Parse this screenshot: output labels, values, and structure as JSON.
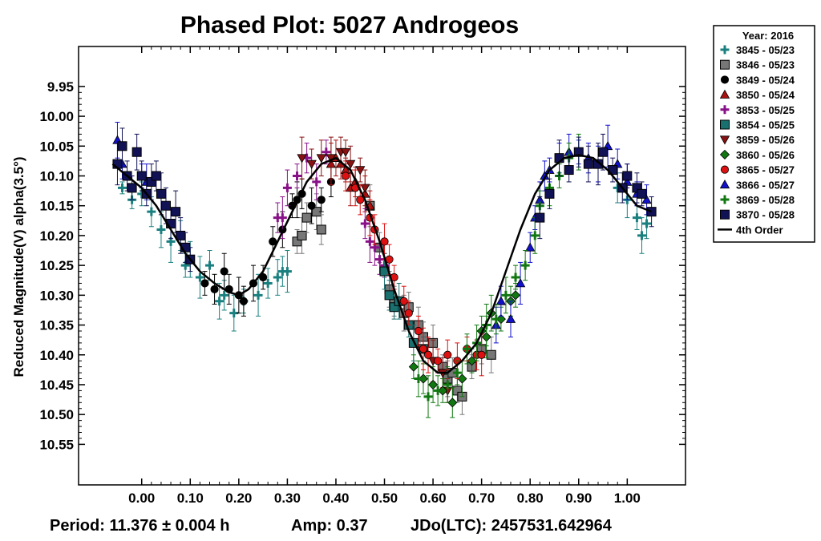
{
  "chart_data": {
    "type": "scatter",
    "title": "Phased Plot: 5027 Androgeos",
    "xlabel": "",
    "ylabel": "Reduced Magnitude(V) alpha(3.5°)",
    "xlim": [
      -0.13,
      1.12
    ],
    "ylim": [
      10.618,
      9.883
    ],
    "y_inverted": true,
    "x_ticks": [
      "0.00",
      "0.10",
      "0.20",
      "0.30",
      "0.40",
      "0.50",
      "0.60",
      "0.70",
      "0.80",
      "0.90",
      "1.00"
    ],
    "y_ticks": [
      "9.95",
      "10.00",
      "10.05",
      "10.10",
      "10.15",
      "10.20",
      "10.25",
      "10.30",
      "10.35",
      "10.40",
      "10.45",
      "10.50",
      "10.55"
    ],
    "grid": false,
    "legend_title": "Year: 2016",
    "legend_position": "right-outside-top",
    "series": [
      {
        "name": "3845 - 05/23",
        "marker": "plus",
        "color": "#1a7f7f",
        "points": [
          [
            -0.04,
            10.12
          ],
          [
            -0.02,
            10.14
          ],
          [
            0.0,
            10.13
          ],
          [
            0.02,
            10.16
          ],
          [
            0.04,
            10.19
          ],
          [
            0.06,
            10.21
          ],
          [
            0.08,
            10.2
          ],
          [
            0.09,
            10.25
          ],
          [
            0.1,
            10.24
          ],
          [
            0.12,
            10.27
          ],
          [
            0.14,
            10.25
          ],
          [
            0.16,
            10.31
          ],
          [
            0.17,
            10.3
          ],
          [
            0.19,
            10.33
          ],
          [
            0.21,
            10.31
          ],
          [
            0.24,
            10.3
          ],
          [
            0.26,
            10.28
          ],
          [
            0.28,
            10.27
          ],
          [
            0.29,
            10.26
          ],
          [
            0.3,
            10.26
          ],
          [
            0.98,
            10.12
          ],
          [
            1.0,
            10.14
          ],
          [
            1.02,
            10.17
          ],
          [
            1.03,
            10.2
          ],
          [
            1.04,
            10.18
          ]
        ]
      },
      {
        "name": "3846 - 05/23",
        "marker": "square",
        "color": "#777777",
        "points": [
          [
            0.32,
            10.21
          ],
          [
            0.33,
            10.2
          ],
          [
            0.34,
            10.17
          ],
          [
            0.36,
            10.16
          ],
          [
            0.37,
            10.19
          ],
          [
            0.47,
            10.15
          ],
          [
            0.49,
            10.22
          ],
          [
            0.51,
            10.29
          ],
          [
            0.52,
            10.31
          ],
          [
            0.54,
            10.33
          ],
          [
            0.55,
            10.32
          ],
          [
            0.57,
            10.35
          ],
          [
            0.58,
            10.37
          ],
          [
            0.6,
            10.38
          ],
          [
            0.62,
            10.42
          ],
          [
            0.63,
            10.44
          ],
          [
            0.64,
            10.43
          ],
          [
            0.65,
            10.46
          ],
          [
            0.66,
            10.47
          ],
          [
            0.68,
            10.42
          ],
          [
            0.7,
            10.39
          ],
          [
            0.72,
            10.4
          ]
        ]
      },
      {
        "name": "3849 - 05/24",
        "marker": "circle",
        "color": "#000000",
        "points": [
          [
            0.13,
            10.28
          ],
          [
            0.15,
            10.29
          ],
          [
            0.17,
            10.26
          ],
          [
            0.18,
            10.29
          ],
          [
            0.2,
            10.3
          ],
          [
            0.21,
            10.31
          ],
          [
            0.23,
            10.28
          ],
          [
            0.25,
            10.27
          ],
          [
            0.27,
            10.21
          ],
          [
            0.29,
            10.19
          ],
          [
            0.31,
            10.15
          ],
          [
            0.32,
            10.14
          ],
          [
            0.33,
            10.13
          ],
          [
            0.35,
            10.15
          ],
          [
            0.37,
            10.14
          ],
          [
            0.39,
            10.11
          ]
        ]
      },
      {
        "name": "3850 - 05/24",
        "marker": "triangle-up",
        "color": "#aa1111",
        "points": [
          [
            0.39,
            10.08
          ],
          [
            0.4,
            10.07
          ],
          [
            0.41,
            10.08
          ],
          [
            0.42,
            10.09
          ],
          [
            0.43,
            10.12
          ],
          [
            0.44,
            10.11
          ],
          [
            0.46,
            10.13
          ],
          [
            0.47,
            10.15
          ]
        ]
      },
      {
        "name": "3853 - 05/25",
        "marker": "plus",
        "color": "#881188",
        "points": [
          [
            0.28,
            10.17
          ],
          [
            0.29,
            10.17
          ],
          [
            0.3,
            10.12
          ],
          [
            0.32,
            10.1
          ],
          [
            0.34,
            10.07
          ],
          [
            0.36,
            10.11
          ],
          [
            0.38,
            10.06
          ],
          [
            0.46,
            10.18
          ],
          [
            0.47,
            10.21
          ],
          [
            0.48,
            10.22
          ],
          [
            0.49,
            10.24
          ],
          [
            0.5,
            10.25
          ]
        ]
      },
      {
        "name": "3854 - 05/25",
        "marker": "square",
        "color": "#1a6f6f",
        "points": [
          [
            0.5,
            10.26
          ],
          [
            0.51,
            10.3
          ],
          [
            0.52,
            10.32
          ],
          [
            0.53,
            10.31
          ],
          [
            0.55,
            10.35
          ],
          [
            0.56,
            10.38
          ],
          [
            0.58,
            10.39
          ]
        ]
      },
      {
        "name": "3859 - 05/26",
        "marker": "triangle-down",
        "color": "#881111",
        "points": [
          [
            0.33,
            10.07
          ],
          [
            0.35,
            10.08
          ],
          [
            0.37,
            10.07
          ],
          [
            0.39,
            10.07
          ],
          [
            0.41,
            10.06
          ],
          [
            0.42,
            10.06
          ],
          [
            0.43,
            10.08
          ],
          [
            0.45,
            10.09
          ],
          [
            0.46,
            10.12
          ],
          [
            0.6,
            10.41
          ],
          [
            0.62,
            10.43
          ],
          [
            0.63,
            10.46
          ]
        ]
      },
      {
        "name": "3860 - 05/26",
        "marker": "diamond",
        "color": "#117711",
        "points": [
          [
            0.56,
            10.42
          ],
          [
            0.58,
            10.44
          ],
          [
            0.6,
            10.45
          ],
          [
            0.62,
            10.46
          ],
          [
            0.64,
            10.48
          ],
          [
            0.66,
            10.44
          ],
          [
            0.68,
            10.41
          ],
          [
            0.7,
            10.36
          ],
          [
            0.71,
            10.37
          ],
          [
            0.72,
            10.33
          ],
          [
            0.74,
            10.34
          ],
          [
            0.76,
            10.31
          ],
          [
            0.77,
            10.3
          ]
        ]
      },
      {
        "name": "3865 - 05/27",
        "marker": "circle",
        "color": "#dd1111",
        "points": [
          [
            0.42,
            10.1
          ],
          [
            0.44,
            10.12
          ],
          [
            0.45,
            10.14
          ],
          [
            0.47,
            10.17
          ],
          [
            0.48,
            10.19
          ],
          [
            0.5,
            10.21
          ],
          [
            0.51,
            10.24
          ],
          [
            0.52,
            10.27
          ],
          [
            0.54,
            10.31
          ],
          [
            0.55,
            10.33
          ],
          [
            0.57,
            10.36
          ],
          [
            0.58,
            10.39
          ],
          [
            0.59,
            10.4
          ],
          [
            0.61,
            10.41
          ],
          [
            0.63,
            10.4
          ],
          [
            0.65,
            10.41
          ],
          [
            0.67,
            10.39
          ],
          [
            0.69,
            10.4
          ],
          [
            0.7,
            10.4
          ]
        ]
      },
      {
        "name": "3866 - 05/27",
        "marker": "triangle-up",
        "color": "#1111cc",
        "points": [
          [
            -0.05,
            10.04
          ],
          [
            -0.04,
            10.08
          ],
          [
            0.0,
            10.1
          ],
          [
            0.01,
            10.11
          ],
          [
            0.73,
            10.35
          ],
          [
            0.74,
            10.31
          ],
          [
            0.76,
            10.34
          ],
          [
            0.78,
            10.28
          ],
          [
            0.8,
            10.22
          ],
          [
            0.81,
            10.17
          ],
          [
            0.82,
            10.14
          ],
          [
            0.83,
            10.1
          ],
          [
            0.84,
            10.09
          ],
          [
            0.86,
            10.07
          ],
          [
            0.88,
            10.06
          ],
          [
            0.9,
            10.06
          ],
          [
            0.92,
            10.07
          ],
          [
            0.94,
            10.08
          ],
          [
            0.96,
            10.05
          ],
          [
            0.98,
            10.08
          ],
          [
            1.0,
            10.11
          ],
          [
            1.02,
            10.13
          ],
          [
            1.04,
            10.14
          ]
        ]
      },
      {
        "name": "3869 - 05/28",
        "marker": "plus",
        "color": "#117711",
        "points": [
          [
            0.57,
            10.44
          ],
          [
            0.59,
            10.47
          ],
          [
            0.61,
            10.46
          ],
          [
            0.63,
            10.45
          ],
          [
            0.65,
            10.43
          ],
          [
            0.67,
            10.39
          ],
          [
            0.69,
            10.38
          ],
          [
            0.71,
            10.35
          ],
          [
            0.73,
            10.34
          ],
          [
            0.75,
            10.3
          ],
          [
            0.77,
            10.27
          ],
          [
            0.79,
            10.25
          ],
          [
            0.81,
            10.2
          ],
          [
            0.82,
            10.15
          ],
          [
            0.84,
            10.12
          ],
          [
            0.86,
            10.1
          ],
          [
            0.88,
            10.07
          ],
          [
            0.9,
            10.06
          ]
        ]
      },
      {
        "name": "3870 - 05/28",
        "marker": "square",
        "color": "#111155",
        "points": [
          [
            -0.05,
            10.08
          ],
          [
            -0.04,
            10.05
          ],
          [
            -0.03,
            10.1
          ],
          [
            -0.02,
            10.12
          ],
          [
            -0.01,
            10.06
          ],
          [
            0.0,
            10.1
          ],
          [
            0.01,
            10.13
          ],
          [
            0.02,
            10.11
          ],
          [
            0.03,
            10.1
          ],
          [
            0.04,
            10.13
          ],
          [
            0.05,
            10.15
          ],
          [
            0.06,
            10.18
          ],
          [
            0.07,
            10.16
          ],
          [
            0.08,
            10.2
          ],
          [
            0.09,
            10.22
          ],
          [
            0.1,
            10.24
          ],
          [
            0.82,
            10.17
          ],
          [
            0.84,
            10.13
          ],
          [
            0.86,
            10.07
          ],
          [
            0.88,
            10.09
          ],
          [
            0.9,
            10.06
          ],
          [
            0.92,
            10.08
          ],
          [
            0.94,
            10.08
          ],
          [
            0.95,
            10.06
          ],
          [
            0.97,
            10.09
          ],
          [
            0.99,
            10.12
          ],
          [
            1.0,
            10.1
          ],
          [
            1.02,
            10.12
          ],
          [
            1.03,
            10.13
          ],
          [
            1.05,
            10.16
          ]
        ]
      }
    ],
    "fit": {
      "name": "4th Order",
      "color": "#000000",
      "x": [
        -0.06,
        -0.03,
        0.0,
        0.03,
        0.06,
        0.09,
        0.12,
        0.15,
        0.18,
        0.2,
        0.22,
        0.25,
        0.28,
        0.31,
        0.34,
        0.37,
        0.4,
        0.43,
        0.46,
        0.49,
        0.52,
        0.55,
        0.58,
        0.61,
        0.63,
        0.66,
        0.69,
        0.72,
        0.75,
        0.78,
        0.81,
        0.84,
        0.87,
        0.9,
        0.93,
        0.96,
        0.99,
        1.02,
        1.05
      ],
      "y": [
        10.08,
        10.1,
        10.12,
        10.15,
        10.19,
        10.23,
        10.26,
        10.28,
        10.295,
        10.3,
        10.29,
        10.26,
        10.21,
        10.16,
        10.11,
        10.08,
        10.07,
        10.09,
        10.14,
        10.21,
        10.29,
        10.36,
        10.41,
        10.43,
        10.43,
        10.41,
        10.38,
        10.33,
        10.26,
        10.19,
        10.13,
        10.09,
        10.07,
        10.065,
        10.07,
        10.09,
        10.12,
        10.15,
        10.16
      ]
    }
  },
  "footer": {
    "period": "Period: 11.376 ± 0.004 h",
    "amp": "Amp: 0.37",
    "jdo": "JDo(LTC): 2457531.642964"
  }
}
